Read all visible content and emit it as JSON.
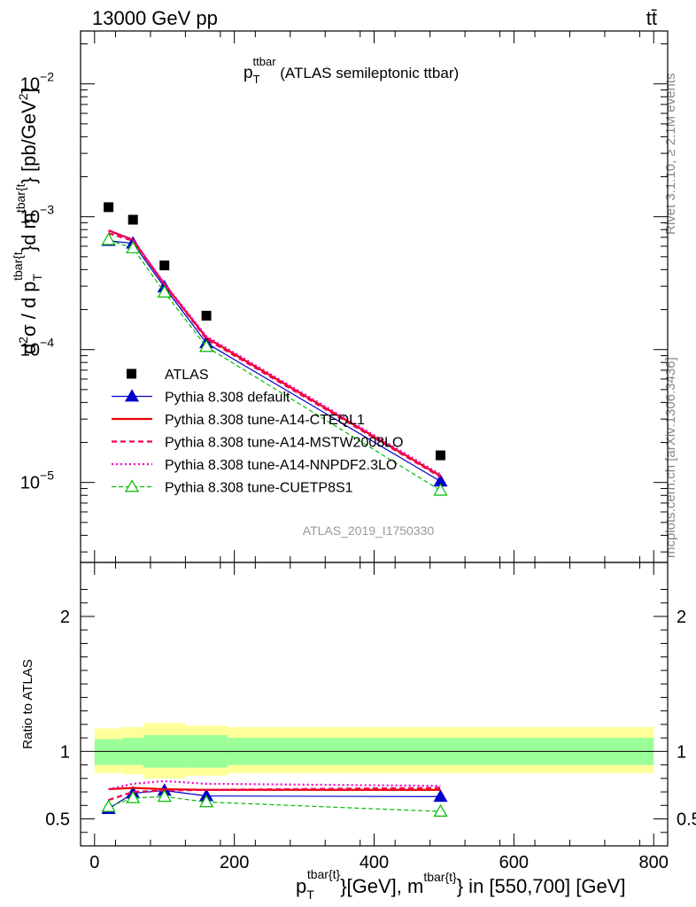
{
  "header": {
    "left": "13000 GeV pp",
    "right": "tt̄"
  },
  "side_labels": {
    "rivet": "Rivet 3.1.10, ≥ 2.1M events",
    "mcplots": "mcplots.cern.ch [arXiv:1306.3436]"
  },
  "plot_title": {
    "main": "p",
    "sub": "T",
    "sup": "ttbar",
    "rest": " (ATLAS semileptonic ttbar)"
  },
  "watermark": "ATLAS_2019_I1750330",
  "ylabel_top": {
    "part1": "d",
    "part1_sup": "2",
    "part2": "σ / d p",
    "part2_sub": "T",
    "part2_sup": "tbar{t",
    "part3": "}d m",
    "part3_sup": "tbar{t",
    "part4": "} [pb/GeV",
    "part4_sup": "2",
    "part5": "]"
  },
  "ylabel_ratio": "Ratio to ATLAS",
  "xlabel": {
    "p": "p",
    "p_sub": "T",
    "p_sup": "tbar{t}",
    "mid": "}[GeV], m",
    "m_sup": "tbar{t}",
    "rest": "} in [550,700] [GeV]"
  },
  "chart_data": {
    "type": "line",
    "x_axis": {
      "range": [
        -20,
        820
      ],
      "ticks": [
        0,
        200,
        400,
        600,
        800
      ],
      "tick_labels": [
        "0",
        "200",
        "400",
        "600",
        "800"
      ]
    },
    "top_panel": {
      "y_scale": "log",
      "y_range": [
        2.5e-06,
        0.025
      ],
      "ticks": [
        1e-05,
        0.0001,
        0.001,
        0.01
      ],
      "tick_labels": [
        {
          "base": "10",
          "exp": "−5"
        },
        {
          "base": "10",
          "exp": "−4"
        },
        {
          "base": "10",
          "exp": "−3"
        },
        {
          "base": "10",
          "exp": "−2"
        }
      ]
    },
    "ratio_panel": {
      "y_range": [
        0.3,
        2.4
      ],
      "ticks": [
        0.5,
        1,
        2
      ],
      "tick_labels": [
        "0.5",
        "1",
        "2"
      ]
    },
    "data": {
      "name": "ATLAS",
      "x": [
        20,
        55,
        100,
        160,
        495
      ],
      "y": [
        0.00118,
        0.00095,
        0.00043,
        0.00018,
        1.6e-05
      ]
    },
    "bands": {
      "inner": [
        {
          "x0": 0,
          "x1": 40,
          "lo": 0.9,
          "hi": 1.09
        },
        {
          "x0": 40,
          "x1": 70,
          "lo": 0.9,
          "hi": 1.1
        },
        {
          "x0": 70,
          "x1": 130,
          "lo": 0.88,
          "hi": 1.12
        },
        {
          "x0": 130,
          "x1": 190,
          "lo": 0.88,
          "hi": 1.12
        },
        {
          "x0": 190,
          "x1": 800,
          "lo": 0.9,
          "hi": 1.1
        }
      ],
      "outer": [
        {
          "x0": 0,
          "x1": 40,
          "lo": 0.84,
          "hi": 1.17
        },
        {
          "x0": 40,
          "x1": 70,
          "lo": 0.83,
          "hi": 1.18
        },
        {
          "x0": 70,
          "x1": 130,
          "lo": 0.8,
          "hi": 1.21
        },
        {
          "x0": 130,
          "x1": 190,
          "lo": 0.82,
          "hi": 1.19
        },
        {
          "x0": 190,
          "x1": 800,
          "lo": 0.84,
          "hi": 1.18
        }
      ]
    },
    "series": [
      {
        "name": "Pythia 8.308 default",
        "color": "#0000cc",
        "dash": "none",
        "marker": "triangle-filled",
        "width": 1.2,
        "x": [
          20,
          55,
          100,
          160,
          495
        ],
        "y": [
          0.00066,
          0.00063,
          0.000295,
          0.000112,
          1.02e-05
        ],
        "ratio": [
          0.575,
          0.69,
          0.71,
          0.67,
          0.665
        ]
      },
      {
        "name": "Pythia 8.308 tune-A14-CTEQL1",
        "color": "#ee0000",
        "dash": "none",
        "marker": "none",
        "width": 2.2,
        "x": [
          20,
          55,
          100,
          160,
          495
        ],
        "y": [
          0.00079,
          0.00067,
          0.00031,
          0.000123,
          1.12e-05
        ],
        "ratio": [
          0.72,
          0.73,
          0.72,
          0.715,
          0.715
        ]
      },
      {
        "name": "Pythia 8.308 tune-A14-MSTW2008LO",
        "color": "#ee0055",
        "dash": "6,4",
        "marker": "none",
        "width": 2.2,
        "x": [
          20,
          55,
          100,
          160,
          495
        ],
        "y": [
          0.00075,
          0.00066,
          0.00031,
          0.00012,
          1.1e-05
        ],
        "ratio": [
          0.64,
          0.7,
          0.71,
          0.715,
          0.73
        ]
      },
      {
        "name": "Pythia 8.308 tune-A14-NNPDF2.3LO",
        "color": "#ee00cc",
        "dash": "2,3",
        "marker": "none",
        "width": 2.2,
        "x": [
          20,
          55,
          100,
          160,
          495
        ],
        "y": [
          0.00078,
          0.00067,
          0.000315,
          0.000126,
          1.15e-05
        ],
        "ratio": [
          0.72,
          0.76,
          0.78,
          0.76,
          0.745
        ]
      },
      {
        "name": "Pythia 8.308 tune-CUETP8S1",
        "color": "#00bb00",
        "dash": "5,3",
        "marker": "triangle-open",
        "width": 1.2,
        "x": [
          20,
          55,
          100,
          160,
          495
        ],
        "y": [
          0.00067,
          0.00058,
          0.00027,
          0.000105,
          8.7e-06
        ],
        "ratio": [
          0.59,
          0.655,
          0.665,
          0.625,
          0.555
        ]
      }
    ]
  }
}
